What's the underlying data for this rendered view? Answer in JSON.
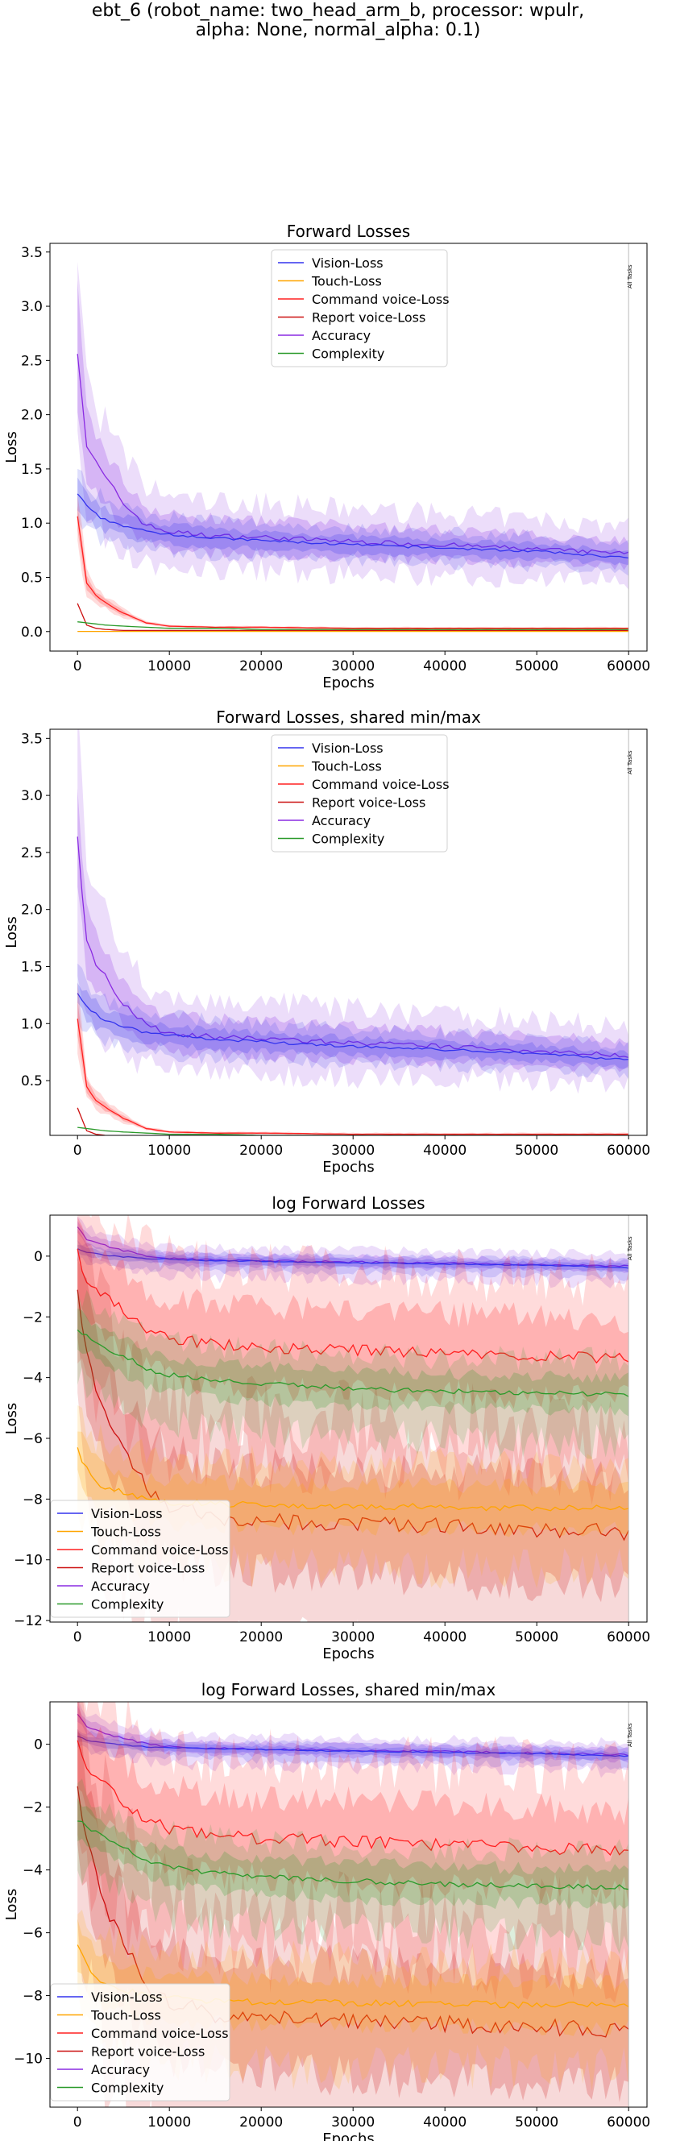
{
  "suptitle_line1": "ebt_6 (robot_name: two_head_arm_b, processor: wpulr,",
  "suptitle_line2": "alpha: None, normal_alpha: 0.1)",
  "colors": {
    "Vision-Loss": "#3333ee",
    "Touch-Loss": "#ffa500",
    "Command voice-Loss": "#ff2020",
    "Report voice-Loss": "#cc1111",
    "Accuracy": "#8a2be2",
    "Complexity": "#2a9a2a"
  },
  "chart_data": [
    {
      "type": "line",
      "title": "Forward Losses",
      "xlabel": "Epochs",
      "ylabel": "Loss",
      "xlim": [
        -3000,
        62000
      ],
      "ylim": [
        -0.18,
        3.58
      ],
      "xticks": [
        0,
        10000,
        20000,
        30000,
        40000,
        50000,
        60000
      ],
      "yticks": [
        0.0,
        0.5,
        1.0,
        1.5,
        2.0,
        2.5,
        3.0,
        3.5
      ],
      "ytick_labels": [
        "0.0",
        "0.5",
        "1.0",
        "1.5",
        "2.0",
        "2.5",
        "3.0",
        "3.5"
      ],
      "legend": [
        "Vision-Loss",
        "Touch-Loss",
        "Command voice-Loss",
        "Report voice-Loss",
        "Accuracy",
        "Complexity"
      ],
      "legend_position": "top-center",
      "vline_x": 60000,
      "vline_label": "All Tasks",
      "series": [
        {
          "name": "Accuracy",
          "x": [
            0,
            1000,
            2000,
            3000,
            5000,
            7500,
            10000,
            15000,
            20000,
            30000,
            40000,
            50000,
            60000
          ],
          "y": [
            2.63,
            1.72,
            1.55,
            1.42,
            1.18,
            0.98,
            0.92,
            0.88,
            0.87,
            0.83,
            0.8,
            0.76,
            0.72
          ]
        },
        {
          "name": "Vision-Loss",
          "x": [
            0,
            1000,
            2000,
            3000,
            5000,
            7500,
            10000,
            15000,
            20000,
            30000,
            40000,
            50000,
            60000
          ],
          "y": [
            1.27,
            1.15,
            1.08,
            1.03,
            0.98,
            0.92,
            0.9,
            0.86,
            0.84,
            0.8,
            0.77,
            0.74,
            0.68
          ]
        },
        {
          "name": "Command voice-Loss",
          "x": [
            0,
            1000,
            2000,
            3000,
            5000,
            7500,
            10000,
            15000,
            20000,
            30000,
            40000,
            50000,
            60000
          ],
          "y": [
            1.05,
            0.45,
            0.33,
            0.27,
            0.17,
            0.08,
            0.05,
            0.04,
            0.04,
            0.03,
            0.03,
            0.03,
            0.03
          ]
        },
        {
          "name": "Report voice-Loss",
          "x": [
            0,
            1000,
            2000,
            3000,
            5000,
            7500,
            10000,
            15000,
            20000,
            30000,
            40000,
            50000,
            60000
          ],
          "y": [
            0.26,
            0.06,
            0.03,
            0.02,
            0.01,
            0.01,
            0.01,
            0.01,
            0.01,
            0.01,
            0.01,
            0.01,
            0.01
          ]
        },
        {
          "name": "Complexity",
          "x": [
            0,
            1000,
            2000,
            3000,
            5000,
            7500,
            10000,
            15000,
            20000,
            30000,
            40000,
            50000,
            60000
          ],
          "y": [
            0.09,
            0.08,
            0.07,
            0.06,
            0.05,
            0.04,
            0.03,
            0.03,
            0.02,
            0.02,
            0.02,
            0.02,
            0.02
          ]
        },
        {
          "name": "Touch-Loss",
          "x": [
            0,
            1000,
            2000,
            3000,
            5000,
            7500,
            10000,
            15000,
            20000,
            30000,
            40000,
            50000,
            60000
          ],
          "y": [
            0.001,
            0.001,
            0.001,
            0.001,
            0.001,
            0.001,
            0.001,
            0.001,
            0.001,
            0.001,
            0.001,
            0.001,
            0.001
          ]
        }
      ]
    },
    {
      "type": "line",
      "title": "Forward Losses, shared min/max",
      "xlabel": "Epochs",
      "ylabel": "Loss",
      "xlim": [
        -3000,
        62000
      ],
      "ylim": [
        0.02,
        3.58
      ],
      "xticks": [
        0,
        10000,
        20000,
        30000,
        40000,
        50000,
        60000
      ],
      "yticks": [
        0.5,
        1.0,
        1.5,
        2.0,
        2.5,
        3.0,
        3.5
      ],
      "ytick_labels": [
        "0.5",
        "1.0",
        "1.5",
        "2.0",
        "2.5",
        "3.0",
        "3.5"
      ],
      "legend": [
        "Vision-Loss",
        "Touch-Loss",
        "Command voice-Loss",
        "Report voice-Loss",
        "Accuracy",
        "Complexity"
      ],
      "legend_position": "top-center",
      "vline_x": 60000,
      "vline_label": "All Tasks",
      "series": [
        {
          "name": "Accuracy",
          "x": [
            0,
            1000,
            2000,
            3000,
            5000,
            7500,
            10000,
            15000,
            20000,
            30000,
            40000,
            50000,
            60000
          ],
          "y": [
            2.63,
            1.72,
            1.55,
            1.42,
            1.18,
            0.98,
            0.92,
            0.88,
            0.87,
            0.83,
            0.8,
            0.76,
            0.72
          ]
        },
        {
          "name": "Vision-Loss",
          "x": [
            0,
            1000,
            2000,
            3000,
            5000,
            7500,
            10000,
            15000,
            20000,
            30000,
            40000,
            50000,
            60000
          ],
          "y": [
            1.27,
            1.15,
            1.08,
            1.03,
            0.98,
            0.92,
            0.9,
            0.86,
            0.84,
            0.8,
            0.77,
            0.74,
            0.68
          ]
        },
        {
          "name": "Command voice-Loss",
          "x": [
            0,
            1000,
            2000,
            3000,
            5000,
            7500,
            10000,
            15000,
            20000,
            30000,
            40000,
            50000,
            60000
          ],
          "y": [
            1.05,
            0.45,
            0.33,
            0.27,
            0.17,
            0.08,
            0.05,
            0.04,
            0.04,
            0.03,
            0.03,
            0.03,
            0.03
          ]
        },
        {
          "name": "Report voice-Loss",
          "x": [
            0,
            1000,
            2000,
            3000,
            5000,
            7500,
            10000,
            15000,
            20000,
            30000,
            40000,
            50000,
            60000
          ],
          "y": [
            0.26,
            0.06,
            0.03,
            0.02,
            0.01,
            0.01,
            0.01,
            0.01,
            0.01,
            0.01,
            0.01,
            0.01,
            0.01
          ]
        },
        {
          "name": "Complexity",
          "x": [
            0,
            1000,
            2000,
            3000,
            5000,
            7500,
            10000,
            15000,
            20000,
            30000,
            40000,
            50000,
            60000
          ],
          "y": [
            0.09,
            0.08,
            0.07,
            0.06,
            0.05,
            0.04,
            0.03,
            0.03,
            0.02,
            0.02,
            0.02,
            0.02,
            0.02
          ]
        },
        {
          "name": "Touch-Loss",
          "x": [
            0,
            1000,
            2000,
            3000,
            5000,
            7500,
            10000,
            15000,
            20000,
            30000,
            40000,
            50000,
            60000
          ],
          "y": [
            0.001,
            0.001,
            0.001,
            0.001,
            0.001,
            0.001,
            0.001,
            0.001,
            0.001,
            0.001,
            0.001,
            0.001,
            0.001
          ]
        }
      ]
    },
    {
      "type": "line",
      "title": "log Forward Losses",
      "xlabel": "Epochs",
      "ylabel": "Loss",
      "xlim": [
        -3000,
        62000
      ],
      "ylim": [
        -12.05,
        1.35
      ],
      "xticks": [
        0,
        10000,
        20000,
        30000,
        40000,
        50000,
        60000
      ],
      "yticks": [
        -12,
        -10,
        -8,
        -6,
        -4,
        -2,
        0
      ],
      "ytick_labels": [
        "−12",
        "−10",
        "−8",
        "−6",
        "−4",
        "−2",
        "0"
      ],
      "legend": [
        "Vision-Loss",
        "Touch-Loss",
        "Command voice-Loss",
        "Report voice-Loss",
        "Accuracy",
        "Complexity"
      ],
      "legend_position": "bottom-left",
      "vline_x": 60000,
      "vline_label": "All Tasks",
      "series": [
        {
          "name": "Accuracy",
          "x": [
            0,
            1000,
            2000,
            3000,
            5000,
            7500,
            10000,
            15000,
            20000,
            30000,
            40000,
            50000,
            60000
          ],
          "y": [
            0.97,
            0.55,
            0.45,
            0.35,
            0.18,
            0.02,
            -0.08,
            -0.13,
            -0.15,
            -0.19,
            -0.23,
            -0.28,
            -0.33
          ]
        },
        {
          "name": "Vision-Loss",
          "x": [
            0,
            1000,
            2000,
            3000,
            5000,
            7500,
            10000,
            15000,
            20000,
            30000,
            40000,
            50000,
            60000
          ],
          "y": [
            0.24,
            0.14,
            0.08,
            0.03,
            -0.02,
            -0.08,
            -0.1,
            -0.15,
            -0.17,
            -0.22,
            -0.26,
            -0.3,
            -0.38
          ]
        },
        {
          "name": "Command voice-Loss",
          "x": [
            0,
            1000,
            2000,
            3000,
            5000,
            7500,
            10000,
            15000,
            20000,
            30000,
            40000,
            50000,
            60000
          ],
          "y": [
            0.05,
            -0.8,
            -1.1,
            -1.3,
            -1.8,
            -2.4,
            -2.7,
            -2.9,
            -3.0,
            -3.1,
            -3.2,
            -3.3,
            -3.4
          ]
        },
        {
          "name": "Report voice-Loss",
          "x": [
            0,
            1000,
            2000,
            3000,
            5000,
            7500,
            10000,
            15000,
            20000,
            30000,
            40000,
            50000,
            60000
          ],
          "y": [
            -1.35,
            -3.0,
            -4.2,
            -5.1,
            -6.4,
            -7.6,
            -8.2,
            -8.6,
            -8.7,
            -8.8,
            -8.9,
            -9.0,
            -9.1
          ]
        },
        {
          "name": "Complexity",
          "x": [
            0,
            1000,
            2000,
            3000,
            5000,
            7500,
            10000,
            15000,
            20000,
            30000,
            40000,
            50000,
            60000
          ],
          "y": [
            -2.4,
            -2.6,
            -2.8,
            -3.0,
            -3.3,
            -3.7,
            -3.9,
            -4.1,
            -4.2,
            -4.35,
            -4.45,
            -4.5,
            -4.55
          ]
        },
        {
          "name": "Touch-Loss",
          "x": [
            0,
            1000,
            2000,
            3000,
            5000,
            7500,
            10000,
            15000,
            20000,
            30000,
            40000,
            50000,
            60000
          ],
          "y": [
            -6.4,
            -7.0,
            -7.4,
            -7.6,
            -7.8,
            -8.0,
            -8.1,
            -8.15,
            -8.2,
            -8.25,
            -8.25,
            -8.3,
            -8.3
          ]
        }
      ]
    },
    {
      "type": "line",
      "title": "log Forward Losses, shared min/max",
      "xlabel": "Epochs",
      "ylabel": "Loss",
      "xlim": [
        -3000,
        62000
      ],
      "ylim": [
        -11.55,
        1.35
      ],
      "xticks": [
        0,
        10000,
        20000,
        30000,
        40000,
        50000,
        60000
      ],
      "yticks": [
        -10,
        -8,
        -6,
        -4,
        -2,
        0
      ],
      "ytick_labels": [
        "−10",
        "−8",
        "−6",
        "−4",
        "−2",
        "0"
      ],
      "legend": [
        "Vision-Loss",
        "Touch-Loss",
        "Command voice-Loss",
        "Report voice-Loss",
        "Accuracy",
        "Complexity"
      ],
      "legend_position": "bottom-left",
      "vline_x": 60000,
      "vline_label": "All Tasks",
      "series": [
        {
          "name": "Accuracy",
          "x": [
            0,
            1000,
            2000,
            3000,
            5000,
            7500,
            10000,
            15000,
            20000,
            30000,
            40000,
            50000,
            60000
          ],
          "y": [
            0.97,
            0.55,
            0.45,
            0.35,
            0.18,
            0.02,
            -0.08,
            -0.13,
            -0.15,
            -0.19,
            -0.23,
            -0.28,
            -0.33
          ]
        },
        {
          "name": "Vision-Loss",
          "x": [
            0,
            1000,
            2000,
            3000,
            5000,
            7500,
            10000,
            15000,
            20000,
            30000,
            40000,
            50000,
            60000
          ],
          "y": [
            0.24,
            0.14,
            0.08,
            0.03,
            -0.02,
            -0.08,
            -0.1,
            -0.15,
            -0.17,
            -0.22,
            -0.26,
            -0.3,
            -0.38
          ]
        },
        {
          "name": "Command voice-Loss",
          "x": [
            0,
            1000,
            2000,
            3000,
            5000,
            7500,
            10000,
            15000,
            20000,
            30000,
            40000,
            50000,
            60000
          ],
          "y": [
            0.05,
            -0.8,
            -1.1,
            -1.3,
            -1.8,
            -2.4,
            -2.7,
            -2.9,
            -3.0,
            -3.1,
            -3.2,
            -3.3,
            -3.4
          ]
        },
        {
          "name": "Report voice-Loss",
          "x": [
            0,
            1000,
            2000,
            3000,
            5000,
            7500,
            10000,
            15000,
            20000,
            30000,
            40000,
            50000,
            60000
          ],
          "y": [
            -1.35,
            -3.0,
            -4.2,
            -5.1,
            -6.4,
            -7.6,
            -8.2,
            -8.6,
            -8.7,
            -8.8,
            -8.9,
            -9.0,
            -9.1
          ]
        },
        {
          "name": "Complexity",
          "x": [
            0,
            1000,
            2000,
            3000,
            5000,
            7500,
            10000,
            15000,
            20000,
            30000,
            40000,
            50000,
            60000
          ],
          "y": [
            -2.4,
            -2.6,
            -2.8,
            -3.0,
            -3.3,
            -3.7,
            -3.9,
            -4.1,
            -4.2,
            -4.35,
            -4.45,
            -4.5,
            -4.55
          ]
        },
        {
          "name": "Touch-Loss",
          "x": [
            0,
            1000,
            2000,
            3000,
            5000,
            7500,
            10000,
            15000,
            20000,
            30000,
            40000,
            50000,
            60000
          ],
          "y": [
            -6.4,
            -7.0,
            -7.4,
            -7.6,
            -7.8,
            -8.0,
            -8.1,
            -8.15,
            -8.2,
            -8.25,
            -8.25,
            -8.3,
            -8.3
          ]
        }
      ]
    }
  ]
}
